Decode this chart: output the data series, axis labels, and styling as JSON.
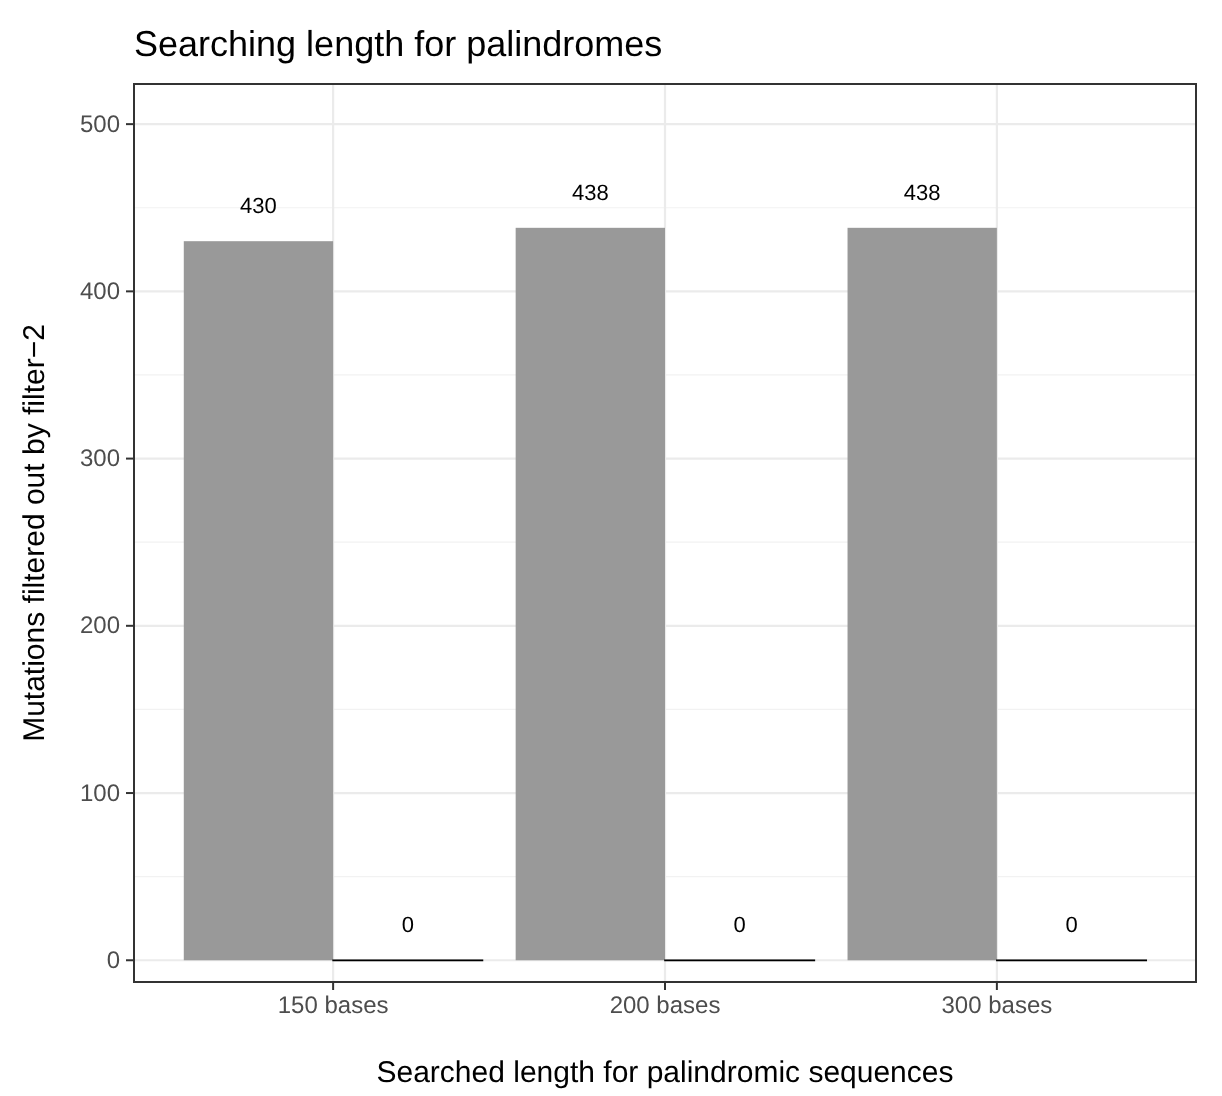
{
  "chart_data": {
    "type": "bar",
    "title": "Searching length for palindromes",
    "xlabel": "Searched length for palindromic sequences",
    "ylabel": "Mutations filtered out by filter−2",
    "categories": [
      "150 bases",
      "200 bases",
      "300 bases"
    ],
    "series": [
      {
        "color": "#999999",
        "values": [
          430,
          438,
          438
        ]
      },
      {
        "color": "#000000",
        "values": [
          0,
          0,
          0
        ]
      }
    ],
    "ylim": [
      -13,
      524
    ],
    "yticks": [
      0,
      100,
      200,
      300,
      400,
      500
    ],
    "grid": true,
    "data_labels": true
  }
}
